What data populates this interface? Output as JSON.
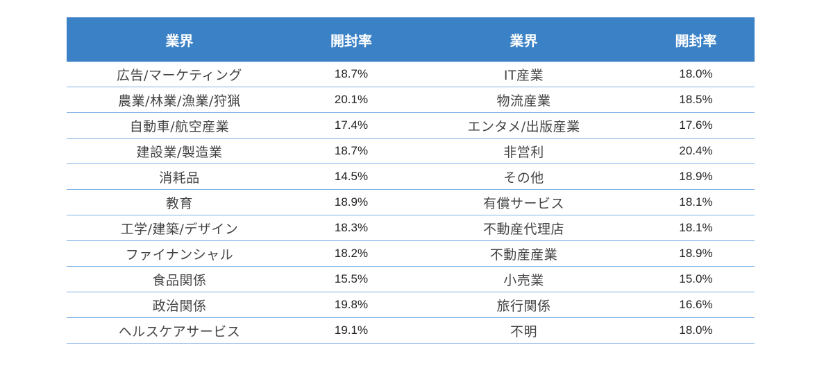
{
  "table": {
    "headers": [
      "業界",
      "開封率",
      "業界",
      "開封率"
    ],
    "rows": [
      [
        "広告/マーケティング",
        "18.7%",
        "IT産業",
        "18.0%"
      ],
      [
        "農業/林業/漁業/狩猟",
        "20.1%",
        "物流産業",
        "18.5%"
      ],
      [
        "自動車/航空産業",
        "17.4%",
        "エンタメ/出版産業",
        "17.6%"
      ],
      [
        "建設業/製造業",
        "18.7%",
        "非営利",
        "20.4%"
      ],
      [
        "消耗品",
        "14.5%",
        "その他",
        "18.9%"
      ],
      [
        "教育",
        "18.9%",
        "有償サービス",
        "18.1%"
      ],
      [
        "工学/建築/デザイン",
        "18.3%",
        "不動産代理店",
        "18.1%"
      ],
      [
        "ファイナンシャル",
        "18.2%",
        "不動産産業",
        "18.9%"
      ],
      [
        "食品関係",
        "15.5%",
        "小売業",
        "15.0%"
      ],
      [
        "政治関係",
        "19.8%",
        "旅行関係",
        "16.6%"
      ],
      [
        "ヘルスケアサービス",
        "19.1%",
        "不明",
        "18.0%"
      ]
    ]
  },
  "colors": {
    "header_background": "#3a81c6",
    "header_text": "#ffffff",
    "row_divider": "#7fb2e5"
  }
}
